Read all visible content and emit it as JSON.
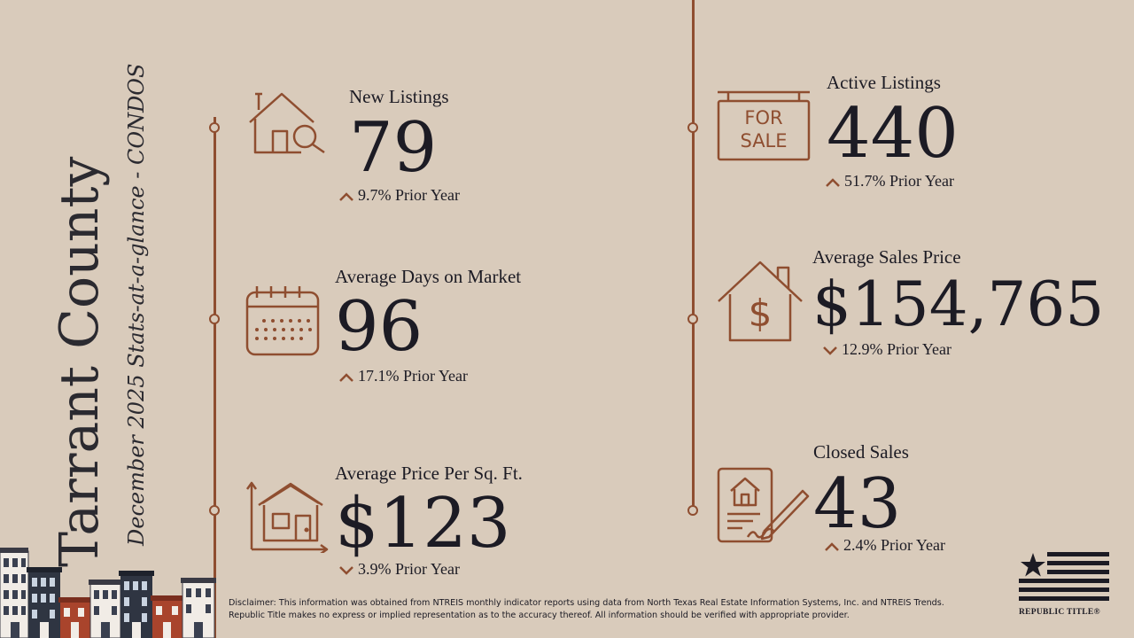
{
  "title": {
    "county": "Tarrant County",
    "subtitle": "December 2025 Stats-at-a-glance - CONDOS"
  },
  "colors": {
    "background": "#d9cbbb",
    "accent": "#8f4e30",
    "text": "#1c1b24"
  },
  "stats": {
    "new_listings": {
      "label": "New Listings",
      "value": "79",
      "change": "9.7% Prior Year",
      "direction": "up",
      "icon": "house-search-icon"
    },
    "avg_days": {
      "label": "Average Days on Market",
      "value": "96",
      "change": "17.1% Prior Year",
      "direction": "up",
      "icon": "calendar-icon"
    },
    "price_sqft": {
      "label": "Average Price Per Sq. Ft.",
      "value": "$123",
      "change": "3.9% Prior Year",
      "direction": "down",
      "icon": "house-dimensions-icon"
    },
    "active_listings": {
      "label": "Active Listings",
      "value": "440",
      "change": "51.7% Prior Year",
      "direction": "up",
      "icon": "for-sale-sign-icon",
      "sign_line1": "FOR",
      "sign_line2": "SALE"
    },
    "avg_sales_price": {
      "label": "Average Sales Price",
      "value": "$154,765",
      "change": "12.9% Prior Year",
      "direction": "down",
      "icon": "house-dollar-icon"
    },
    "closed_sales": {
      "label": "Closed Sales",
      "value": "43",
      "change": "2.4% Prior Year",
      "direction": "up",
      "icon": "signed-contract-icon"
    }
  },
  "disclaimer": "Disclaimer: This information was obtained from NTREIS monthly indicator reports using data from North Texas Real Estate Information Systems, Inc. and NTREIS Trends. Republic Title makes no express or implied representation as to the accuracy thereof. All information should be verified with appropriate provider.",
  "logo": {
    "text": "REPUBLIC TITLE®",
    "icon": "star-flag-icon"
  }
}
